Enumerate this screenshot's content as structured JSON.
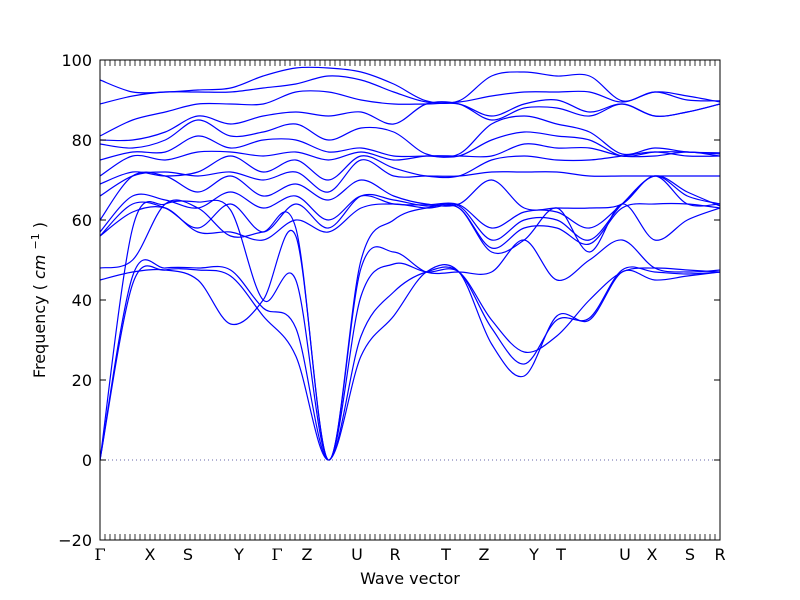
{
  "chart_data": {
    "type": "line",
    "title": "",
    "xlabel": "Wave vector",
    "ylabel": "Frequency",
    "ylabel_unit_base": "cm",
    "ylabel_unit_exp": "−1",
    "ylim": [
      -20,
      100
    ],
    "y_ticks": [
      -20,
      0,
      20,
      40,
      60,
      80,
      100
    ],
    "zero_line": true,
    "grid": false,
    "line_color": "#0000ff",
    "zero_line_color": "#6666aa",
    "k_points": [
      {
        "label": "Γ",
        "x": 0
      },
      {
        "label": "X",
        "x": 0.5
      },
      {
        "label": "S",
        "x": 0.88
      },
      {
        "label": "Y",
        "x": 1.39
      },
      {
        "label": "Γ",
        "x": 1.77
      },
      {
        "label": "Z",
        "x": 2.07
      },
      {
        "label": "U",
        "x": 2.57
      },
      {
        "label": "R",
        "x": 2.95
      },
      {
        "label": "T",
        "x": 3.46
      },
      {
        "label": "Z",
        "x": 3.84
      },
      {
        "label": "Y",
        "x": 4.34
      },
      {
        "label": "T",
        "x": 4.61
      },
      {
        "label": "U",
        "x": 5.25
      },
      {
        "label": "X",
        "x": 5.52
      },
      {
        "label": "S",
        "x": 5.9
      },
      {
        "label": "R",
        "x": 6.2
      }
    ],
    "xlim": [
      0,
      6.2
    ],
    "series": [
      {
        "values": [
          0,
          44,
          47.5,
          47.5,
          46,
          36,
          26,
          0,
          26,
          36,
          47,
          47,
          29,
          21,
          36,
          35,
          47,
          45,
          46,
          47
        ]
      },
      {
        "values": [
          0,
          46,
          48,
          48,
          47.5,
          38,
          33,
          0,
          31,
          42,
          47,
          47,
          33,
          24,
          35,
          35.5,
          47.5,
          47,
          46.5,
          47
        ]
      },
      {
        "values": [
          0,
          58,
          64,
          64.5,
          62.5,
          40,
          45,
          0,
          41,
          49,
          47,
          47,
          35,
          27,
          31,
          40,
          47,
          48,
          47.5,
          47
        ]
      },
      {
        "values": [
          45,
          47,
          47.5,
          45,
          34,
          40,
          56,
          0,
          48,
          52,
          47,
          47,
          47,
          55,
          45,
          50,
          55,
          48,
          47,
          47.5
        ]
      },
      {
        "values": [
          48,
          50,
          64,
          63,
          56,
          57,
          58,
          0,
          50,
          60,
          63,
          63,
          52,
          55,
          63,
          52,
          64,
          55,
          60,
          63
        ]
      },
      {
        "values": [
          56,
          62,
          63,
          57,
          57,
          55,
          60,
          57,
          63,
          64,
          63,
          63,
          53,
          58,
          58,
          54,
          63,
          64,
          64,
          63
        ]
      },
      {
        "values": [
          56,
          64,
          63,
          58,
          64,
          57,
          64,
          58,
          66,
          65,
          63.5,
          63.5,
          55,
          60,
          60,
          55,
          64,
          71,
          67,
          63.5
        ]
      },
      {
        "values": [
          57,
          66,
          65,
          63,
          67,
          63,
          66,
          60,
          66,
          64,
          63.8,
          63.8,
          58,
          62,
          62,
          58,
          64,
          71,
          66,
          64
        ]
      },
      {
        "values": [
          60,
          71,
          71,
          67,
          71,
          66,
          69,
          65,
          70,
          66,
          64,
          64,
          70,
          63,
          63,
          63,
          64,
          71,
          64,
          64
        ]
      },
      {
        "values": [
          66,
          71,
          72,
          71,
          72,
          70,
          72,
          67,
          75,
          71,
          71,
          71,
          72,
          72,
          72,
          71,
          71,
          71,
          71,
          71
        ]
      },
      {
        "values": [
          69,
          72,
          71,
          72,
          76,
          72,
          75,
          70,
          76,
          73,
          71,
          71,
          75,
          76,
          75,
          75,
          76,
          77,
          76,
          76
        ]
      },
      {
        "values": [
          71,
          76,
          75,
          77,
          77,
          76,
          77,
          75,
          77,
          75,
          76,
          76,
          76,
          79,
          78,
          78,
          76,
          76,
          77,
          76
        ]
      },
      {
        "values": [
          75,
          77,
          77,
          81,
          78,
          80,
          80,
          77,
          78,
          76,
          76,
          76,
          80,
          82,
          81,
          80,
          76,
          77,
          77,
          76.5
        ]
      },
      {
        "values": [
          79,
          78,
          80,
          85,
          81,
          82,
          84,
          80,
          83,
          82,
          76.5,
          76.5,
          84,
          86,
          84,
          82,
          76.5,
          78,
          77,
          76.8
        ]
      },
      {
        "values": [
          80,
          80,
          82,
          86,
          84,
          86,
          87,
          86,
          87,
          84,
          89,
          89,
          85,
          88,
          88,
          86,
          89,
          86,
          87,
          89
        ]
      },
      {
        "values": [
          81,
          85,
          87,
          89,
          89,
          89,
          92,
          92,
          90,
          89,
          89,
          89,
          86,
          89,
          90,
          87,
          89,
          86,
          87,
          89
        ]
      },
      {
        "values": [
          89,
          91,
          92,
          92,
          92,
          93,
          94,
          96,
          95,
          92,
          89.5,
          89.5,
          91,
          92,
          92,
          92,
          89.5,
          92,
          91,
          89.5
        ]
      },
      {
        "values": [
          95,
          92,
          92,
          92.5,
          93,
          96,
          98,
          98,
          97,
          94,
          89.8,
          89.8,
          96,
          97,
          96,
          96,
          89.8,
          92,
          90,
          89.8
        ]
      }
    ]
  }
}
